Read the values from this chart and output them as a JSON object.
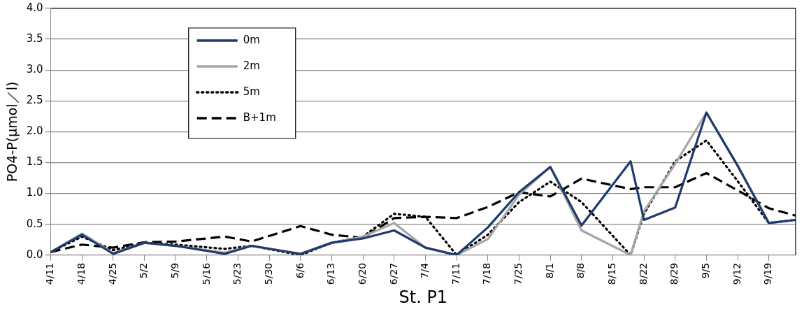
{
  "chart_data": {
    "type": "line",
    "xlabel": "St. P1",
    "ylabel": "PO4-P(μmol／l)",
    "x": [
      "--04-11",
      "--04-18",
      "--04-25",
      "--05-02",
      "--05-09",
      "--05-20",
      "--05-26",
      "--06-06",
      "--06-13",
      "--06-20",
      "--06-27",
      "--07-04",
      "--07-11",
      "--07-18",
      "--07-25",
      "--08-01",
      "--08-08",
      "--08-19",
      "--08-22",
      "--08-29",
      "--09-05",
      "--09-12",
      "--09-19",
      "--09-25"
    ],
    "series": [
      {
        "name": "0m",
        "color": "#1f3a6e",
        "line_style": "solid",
        "values": [
          0.05,
          0.33,
          0.02,
          0.2,
          0.15,
          0.02,
          0.15,
          0.02,
          0.2,
          0.27,
          0.4,
          0.12,
          0,
          0.45,
          1.02,
          1.43,
          0.48,
          1.52,
          0.57,
          0.77,
          2.31,
          1.45,
          0.52,
          0.57
        ]
      },
      {
        "name": "2m",
        "color": "#a6a6a6",
        "line_style": "solid",
        "values": [
          0.05,
          0.35,
          0.03,
          0.2,
          0.15,
          0.04,
          0.15,
          0.02,
          0.2,
          0.3,
          0.52,
          0.12,
          0,
          0.26,
          0.98,
          1.43,
          0.4,
          0,
          0.71,
          1.48,
          2.31,
          1.45,
          0.52,
          0.57
        ]
      },
      {
        "name": "5m",
        "color": "#000000",
        "line_style": "dotted",
        "values": [
          0.05,
          0.3,
          0.08,
          0.2,
          0.17,
          0.1,
          0.15,
          0,
          0.2,
          0.3,
          0.67,
          0.62,
          0,
          0.33,
          0.86,
          1.19,
          0.86,
          0,
          0.67,
          1.52,
          1.86,
          1.2,
          0.52,
          0.57
        ]
      },
      {
        "name": "B+1m",
        "color": "#000000",
        "line_style": "dashed",
        "values": [
          0.05,
          0.17,
          0.12,
          0.21,
          0.22,
          0.3,
          0.22,
          0.47,
          0.33,
          0.28,
          0.6,
          0.62,
          0.6,
          0.78,
          1.02,
          0.95,
          1.24,
          1.07,
          1.1,
          1.1,
          1.33,
          1.05,
          0.76,
          0.64
        ]
      }
    ],
    "xlim": [
      "--04-11",
      "--09-25"
    ],
    "xticks": [
      {
        "value": "--04-11",
        "label": "4/11"
      },
      {
        "value": "--04-18",
        "label": "4/18"
      },
      {
        "value": "--04-25",
        "label": "4/25"
      },
      {
        "value": "--05-02",
        "label": "5/2"
      },
      {
        "value": "--05-09",
        "label": "5/9"
      },
      {
        "value": "--05-16",
        "label": "5/16"
      },
      {
        "value": "--05-23",
        "label": "5/23"
      },
      {
        "value": "--05-30",
        "label": "5/30"
      },
      {
        "value": "--06-06",
        "label": "6/6"
      },
      {
        "value": "--06-13",
        "label": "6/13"
      },
      {
        "value": "--06-20",
        "label": "6/20"
      },
      {
        "value": "--06-27",
        "label": "6/27"
      },
      {
        "value": "--07-04",
        "label": "7/4"
      },
      {
        "value": "--07-11",
        "label": "7/11"
      },
      {
        "value": "--07-18",
        "label": "7/18"
      },
      {
        "value": "--07-25",
        "label": "7/25"
      },
      {
        "value": "--08-01",
        "label": "8/1"
      },
      {
        "value": "--08-08",
        "label": "8/8"
      },
      {
        "value": "--08-15",
        "label": "8/15"
      },
      {
        "value": "--08-22",
        "label": "8/22"
      },
      {
        "value": "--08-29",
        "label": "8/29"
      },
      {
        "value": "--09-05",
        "label": "9/5"
      },
      {
        "value": "--09-12",
        "label": "9/12"
      },
      {
        "value": "--09-19",
        "label": "9/19"
      }
    ],
    "ylim": [
      0,
      4
    ],
    "yticks": [
      {
        "value": 0,
        "label": "0.0"
      },
      {
        "value": 0.5,
        "label": "0.5"
      },
      {
        "value": 1,
        "label": "1.0"
      },
      {
        "value": 1.5,
        "label": "1.5"
      },
      {
        "value": 2,
        "label": "2.0"
      },
      {
        "value": 2.5,
        "label": "2.5"
      },
      {
        "value": 3,
        "label": "3.0"
      },
      {
        "value": 3.5,
        "label": "3.5"
      },
      {
        "value": 4,
        "label": "4.0"
      }
    ],
    "grid": "y",
    "legend": "top left",
    "marker": "none"
  }
}
